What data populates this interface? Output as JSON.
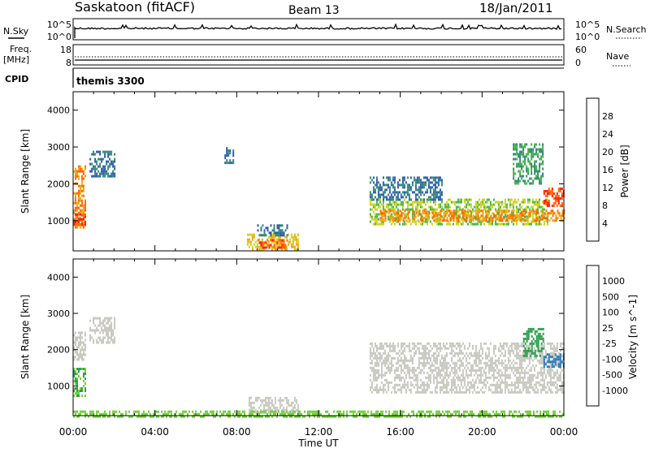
{
  "header": {
    "station": "Saskatoon (fitACF)",
    "beam": "Beam 13",
    "date": "18/Jan/2011"
  },
  "strip_panels": {
    "nsky": {
      "left_label": "N.Sky",
      "left_ticks": [
        "10^5",
        "10^0"
      ],
      "right_label": "N.Search",
      "right_ticks": [
        "10^5",
        "10^0"
      ]
    },
    "freq": {
      "left_label_line1": "Freq.",
      "left_label_line2": "[MHz]",
      "left_ticks": [
        "18",
        "8"
      ],
      "right_label": "Nave",
      "right_ticks": [
        "60",
        "0"
      ]
    },
    "cpid": {
      "label": "CPID",
      "value": "themis 3300"
    }
  },
  "chart_data": [
    {
      "type": "heatmap",
      "name": "Power",
      "ylabel": "Slant Range [km]",
      "xlabel": "Time UT",
      "x_range_hours": [
        0,
        24
      ],
      "ylim": [
        180,
        4500
      ],
      "yticks": [
        "1000",
        "2000",
        "3000",
        "4000"
      ],
      "xticks": [
        "00:00",
        "04:00",
        "08:00",
        "12:00",
        "16:00",
        "20:00",
        "00:00"
      ],
      "colorbar": {
        "label": "Power [dB]",
        "ticks": [
          "4",
          "8",
          "12",
          "16",
          "20",
          "24",
          "28"
        ],
        "colors": [
          "#1a35ff",
          "#2d5bb0",
          "#35897a",
          "#46b646",
          "#cfd21e",
          "#f5a512",
          "#ff6a00",
          "#ff1f00"
        ]
      },
      "regions": [
        {
          "t0": 0.0,
          "t1": 0.6,
          "r0": 800,
          "r1": 2500,
          "power_db": 24
        },
        {
          "t0": 0.0,
          "t1": 0.6,
          "r0": 900,
          "r1": 1200,
          "power_db": 28
        },
        {
          "t0": 0.8,
          "t1": 2.0,
          "r0": 2200,
          "r1": 2900,
          "power_db": 8
        },
        {
          "t0": 7.4,
          "t1": 7.8,
          "r0": 2600,
          "r1": 3000,
          "power_db": 8
        },
        {
          "t0": 8.5,
          "t1": 11.0,
          "r0": 250,
          "r1": 650,
          "power_db": 20
        },
        {
          "t0": 9.0,
          "t1": 10.5,
          "r0": 300,
          "r1": 500,
          "power_db": 28
        },
        {
          "t0": 9.0,
          "t1": 10.5,
          "r0": 600,
          "r1": 900,
          "power_db": 8
        },
        {
          "t0": 14.5,
          "t1": 23.2,
          "r0": 900,
          "r1": 1600,
          "power_db": 16
        },
        {
          "t0": 15.0,
          "t1": 24.0,
          "r0": 1000,
          "r1": 1300,
          "power_db": 24
        },
        {
          "t0": 23.0,
          "t1": 24.0,
          "r0": 1400,
          "r1": 1900,
          "power_db": 28
        },
        {
          "t0": 14.5,
          "t1": 18.0,
          "r0": 1600,
          "r1": 2200,
          "power_db": 8
        },
        {
          "t0": 21.5,
          "t1": 23.0,
          "r0": 2000,
          "r1": 3100,
          "power_db": 12
        }
      ]
    },
    {
      "type": "heatmap",
      "name": "Velocity",
      "ylabel": "Slant Range [km]",
      "xlabel": "Time UT",
      "x_range_hours": [
        0,
        24
      ],
      "ylim": [
        180,
        4500
      ],
      "yticks": [
        "1000",
        "2000",
        "3000",
        "4000"
      ],
      "xticks": [
        "00:00",
        "04:00",
        "08:00",
        "12:00",
        "16:00",
        "20:00",
        "00:00"
      ],
      "colorbar": {
        "label": "Velocity [m s^-1]",
        "ticks": [
          "1000",
          "500",
          "100",
          "25",
          "-25",
          "-100",
          "-500",
          "-1000"
        ],
        "colors": [
          "#2a3fc0",
          "#2e7ab8",
          "#2f9e4d",
          "#6fd436",
          "#c8c8c0",
          "#f0c020",
          "#f59a10",
          "#ff6a00",
          "#ff1f00"
        ]
      },
      "regions": [
        {
          "t0": 0.0,
          "t1": 0.6,
          "r0": 700,
          "r1": 1500,
          "velocity": 100
        },
        {
          "t0": 0.0,
          "t1": 0.6,
          "r0": 1700,
          "r1": 2500,
          "velocity": 0
        },
        {
          "t0": 0.8,
          "t1": 2.0,
          "r0": 2200,
          "r1": 2900,
          "velocity": 0
        },
        {
          "t0": 8.5,
          "t1": 11.0,
          "r0": 250,
          "r1": 700,
          "velocity": 0
        },
        {
          "t0": 14.5,
          "t1": 24.0,
          "r0": 800,
          "r1": 2200,
          "velocity": 0
        },
        {
          "t0": 23.0,
          "t1": 24.0,
          "r0": 1500,
          "r1": 1900,
          "velocity": 700
        },
        {
          "t0": 22.0,
          "t1": 23.0,
          "r0": 1800,
          "r1": 2600,
          "velocity": 120
        },
        {
          "t0": 0.0,
          "t1": 24.0,
          "r0": 180,
          "r1": 320,
          "velocity": 80
        }
      ]
    }
  ]
}
